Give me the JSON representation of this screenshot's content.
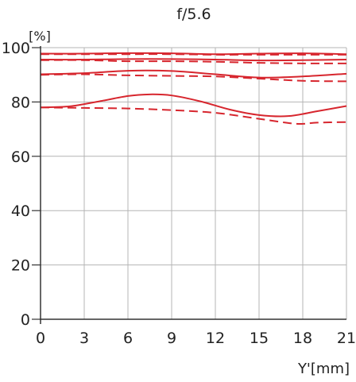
{
  "chart_data": {
    "type": "line",
    "title": "f/5.6",
    "ylabel": "[%]",
    "xlabel": "Y'[mm]",
    "xlim": [
      0,
      21
    ],
    "ylim": [
      0,
      100
    ],
    "xticks": [
      0,
      3,
      6,
      9,
      12,
      15,
      18,
      21
    ],
    "yticks": [
      0,
      20,
      40,
      60,
      80,
      100
    ],
    "grid": true,
    "legend": "none",
    "line_color": "#d7262e",
    "series": [
      {
        "style": "solid",
        "x": [
          0,
          3,
          6,
          9,
          12,
          15,
          18,
          21
        ],
        "y": [
          97.8,
          97.8,
          98.0,
          97.9,
          97.6,
          97.8,
          97.9,
          97.6
        ]
      },
      {
        "style": "dashed",
        "x": [
          0,
          3,
          6,
          9,
          12,
          15,
          18,
          21
        ],
        "y": [
          97.6,
          97.6,
          97.6,
          97.6,
          97.4,
          97.4,
          97.4,
          97.4
        ]
      },
      {
        "style": "solid",
        "x": [
          0,
          3,
          6,
          9,
          12,
          15,
          18,
          21
        ],
        "y": [
          95.6,
          95.6,
          95.8,
          95.8,
          95.6,
          95.3,
          95.4,
          95.6
        ]
      },
      {
        "style": "dashed",
        "x": [
          0,
          3,
          6,
          9,
          12,
          15,
          18,
          21
        ],
        "y": [
          95.4,
          95.4,
          95.0,
          95.0,
          94.8,
          94.4,
          94.2,
          94.2
        ]
      },
      {
        "style": "solid",
        "x": [
          0,
          3,
          6,
          9,
          12,
          15,
          18,
          21
        ],
        "y": [
          90.2,
          90.6,
          91.5,
          91.4,
          90.2,
          89.0,
          89.4,
          90.4
        ]
      },
      {
        "style": "dashed",
        "x": [
          0,
          3,
          6,
          9,
          12,
          15,
          18,
          21
        ],
        "y": [
          90.0,
          90.2,
          89.8,
          89.6,
          89.4,
          88.6,
          87.8,
          87.6
        ]
      },
      {
        "style": "solid",
        "x": [
          0,
          2,
          4,
          6,
          7.5,
          9,
          11,
          13,
          15,
          17,
          19,
          21
        ],
        "y": [
          78.0,
          78.4,
          80.2,
          82.2,
          82.8,
          82.4,
          80.2,
          77.2,
          75.2,
          74.8,
          76.6,
          78.5
        ]
      },
      {
        "style": "dashed",
        "x": [
          0,
          3,
          6,
          9,
          12,
          15,
          17.5,
          19,
          21
        ],
        "y": [
          78.0,
          77.8,
          77.6,
          77.0,
          76.0,
          73.8,
          72.0,
          72.4,
          72.6
        ]
      }
    ]
  }
}
